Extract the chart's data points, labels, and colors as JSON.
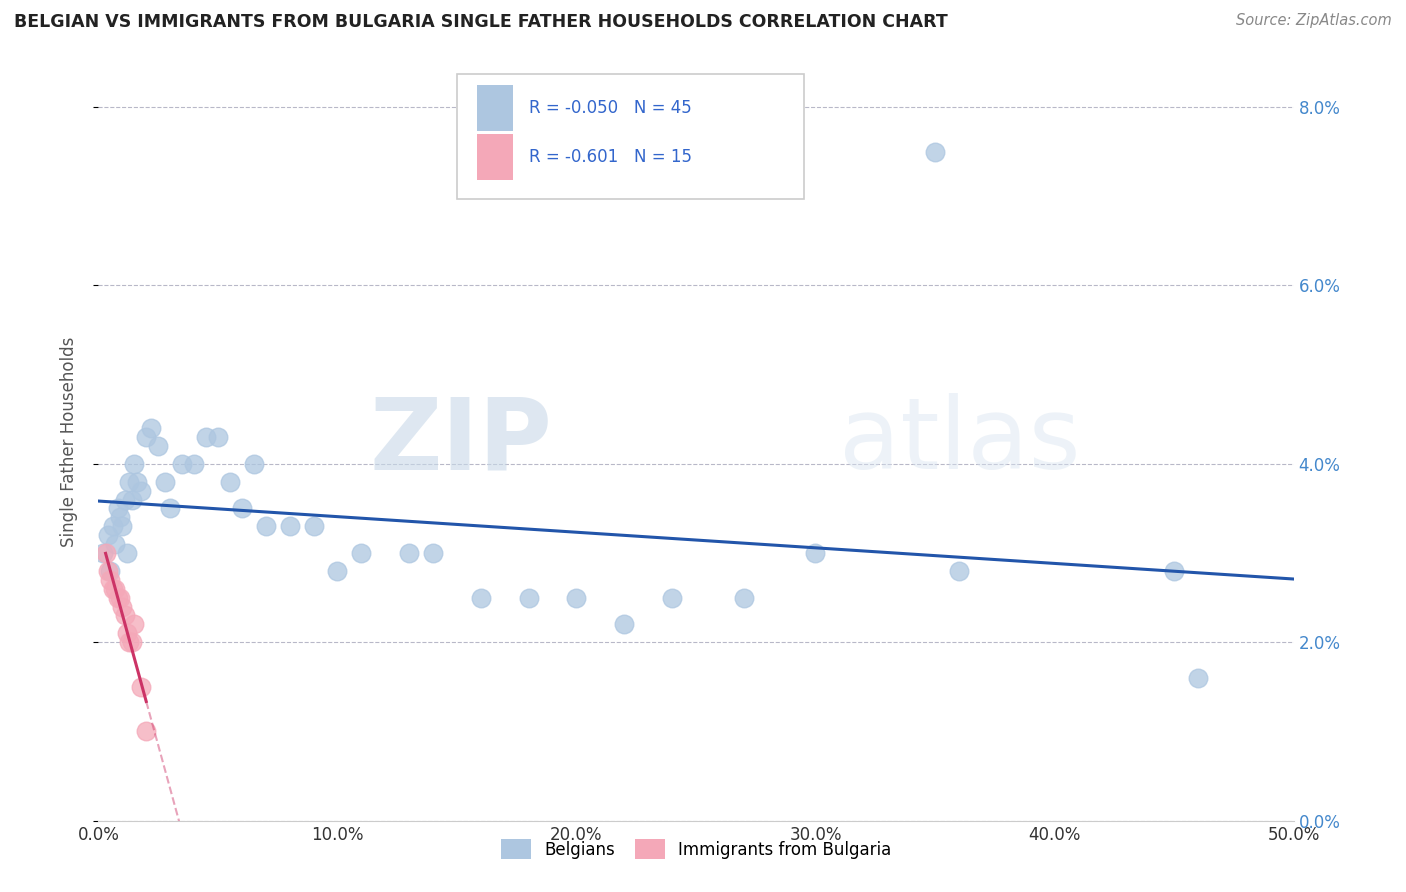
{
  "title": "BELGIAN VS IMMIGRANTS FROM BULGARIA SINGLE FATHER HOUSEHOLDS CORRELATION CHART",
  "source": "Source: ZipAtlas.com",
  "ylabel": "Single Father Households",
  "legend_label1": "Belgians",
  "legend_label2": "Immigrants from Bulgaria",
  "r1": -0.05,
  "n1": 45,
  "r2": -0.601,
  "n2": 15,
  "xlim": [
    0.0,
    0.5
  ],
  "ylim": [
    0.0,
    0.085
  ],
  "xtick_vals": [
    0.0,
    0.1,
    0.2,
    0.3,
    0.4,
    0.5
  ],
  "ytick_vals": [
    0.0,
    0.02,
    0.04,
    0.06,
    0.08
  ],
  "color_belgian": "#adc6e0",
  "color_bulgarian": "#f4a8b8",
  "color_line1": "#2255aa",
  "color_line2": "#cc3366",
  "watermark_zip": "ZIP",
  "watermark_atlas": "atlas",
  "belgian_x": [
    0.002,
    0.004,
    0.005,
    0.006,
    0.007,
    0.008,
    0.009,
    0.01,
    0.011,
    0.012,
    0.013,
    0.014,
    0.015,
    0.016,
    0.018,
    0.02,
    0.022,
    0.025,
    0.028,
    0.03,
    0.035,
    0.04,
    0.045,
    0.05,
    0.055,
    0.06,
    0.065,
    0.07,
    0.08,
    0.09,
    0.1,
    0.11,
    0.13,
    0.14,
    0.16,
    0.18,
    0.2,
    0.22,
    0.24,
    0.27,
    0.3,
    0.35,
    0.36,
    0.45,
    0.46
  ],
  "belgian_y": [
    0.03,
    0.032,
    0.028,
    0.033,
    0.031,
    0.035,
    0.034,
    0.033,
    0.036,
    0.03,
    0.038,
    0.036,
    0.04,
    0.038,
    0.037,
    0.043,
    0.044,
    0.042,
    0.038,
    0.035,
    0.04,
    0.04,
    0.043,
    0.043,
    0.038,
    0.035,
    0.04,
    0.033,
    0.033,
    0.033,
    0.028,
    0.03,
    0.03,
    0.03,
    0.025,
    0.025,
    0.025,
    0.022,
    0.025,
    0.025,
    0.03,
    0.075,
    0.028,
    0.028,
    0.016
  ],
  "bulgarian_x": [
    0.003,
    0.004,
    0.005,
    0.006,
    0.007,
    0.008,
    0.009,
    0.01,
    0.011,
    0.012,
    0.013,
    0.014,
    0.015,
    0.018,
    0.02
  ],
  "bulgarian_y": [
    0.03,
    0.028,
    0.027,
    0.026,
    0.026,
    0.025,
    0.025,
    0.024,
    0.023,
    0.021,
    0.02,
    0.02,
    0.022,
    0.015,
    0.01
  ]
}
